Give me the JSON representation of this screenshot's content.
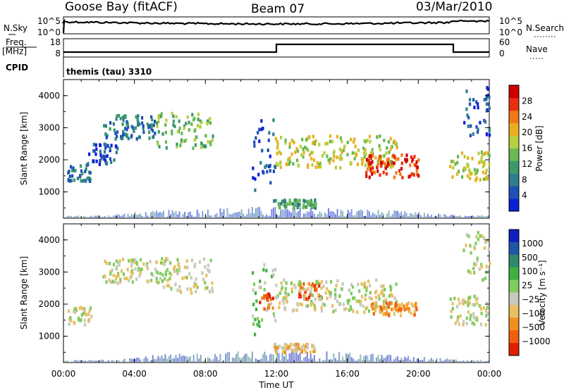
{
  "header": {
    "station": "Goose Bay (fitACF)",
    "beam": "Beam 07",
    "date": "03/Mar/2010"
  },
  "top_panels": {
    "noise_left_label": "N.Sky",
    "noise_right_label": "N.Search",
    "noise_ticks": [
      "10^5",
      "10^0"
    ],
    "freq_label": "Freq.",
    "freq_unit": "[MHz]",
    "freq_ticks": [
      "18",
      "8"
    ],
    "nave_label": "Nave",
    "nave_ticks": [
      "60",
      "0"
    ],
    "cpid_label": "CPID",
    "cpid_value": "themis (tau) 3310"
  },
  "colors": {
    "power_scale": [
      "#0a1fd6",
      "#1f50b8",
      "#2e7c8c",
      "#3a9a6a",
      "#69b850",
      "#b4d040",
      "#e8b020",
      "#f07818",
      "#e83010",
      "#d00000"
    ],
    "velocity_scale": [
      "#1020c0",
      "#2255a8",
      "#2e8a6a",
      "#40b040",
      "#80cc60",
      "#c8c8bc",
      "#e8c060",
      "#f09020",
      "#f06010",
      "#e02000"
    ]
  },
  "chart_data": [
    {
      "type": "heatmap",
      "ylabel": "Slant Range [km]",
      "ylim": [
        180,
        4500
      ],
      "y_ticks": [
        "1000",
        "2000",
        "3000",
        "4000"
      ],
      "colorbar_label": "Power [dB]",
      "colorbar_ticks": [
        "4",
        "8",
        "12",
        "16",
        "20",
        "24",
        "28"
      ],
      "bands": [
        {
          "t0": 0.2,
          "t1": 1.6,
          "r0": 1380,
          "r1": 1950,
          "level": 2
        },
        {
          "t0": 1.3,
          "t1": 3.0,
          "r0": 1900,
          "r1": 2550,
          "level": 1
        },
        {
          "t0": 2.2,
          "t1": 5.2,
          "r0": 2700,
          "r1": 3450,
          "level": 2
        },
        {
          "t0": 5.2,
          "t1": 8.4,
          "r0": 2400,
          "r1": 3500,
          "level": 4
        },
        {
          "t0": 10.6,
          "t1": 11.9,
          "r0": 1100,
          "r1": 3300,
          "level": 1
        },
        {
          "t0": 11.9,
          "t1": 18.8,
          "r0": 1800,
          "r1": 2800,
          "level": 5
        },
        {
          "t0": 17.0,
          "t1": 20.0,
          "r0": 1500,
          "r1": 2200,
          "level": 8
        },
        {
          "t0": 11.8,
          "t1": 14.2,
          "r0": 550,
          "r1": 800,
          "level": 3
        },
        {
          "t0": 21.7,
          "t1": 24.0,
          "r0": 1400,
          "r1": 2300,
          "level": 5
        },
        {
          "t0": 22.5,
          "t1": 24.0,
          "r0": 2800,
          "r1": 4300,
          "level": 1
        }
      ]
    },
    {
      "type": "heatmap",
      "ylabel": "Slant Range [km]",
      "xlabel": "Time UT",
      "ylim": [
        180,
        4500
      ],
      "y_ticks": [
        "1000",
        "2000",
        "3000",
        "4000"
      ],
      "x_ticks": [
        "00:00",
        "04:00",
        "08:00",
        "12:00",
        "16:00",
        "20:00",
        "00:00"
      ],
      "colorbar_label": "Velocity [m s⁻¹]",
      "colorbar_ticks": [
        "1000",
        "500",
        "100",
        "25",
        "−25",
        "−100",
        "−500",
        "−1000"
      ],
      "bands": [
        {
          "t0": 0.2,
          "t1": 1.6,
          "r0": 1380,
          "r1": 1950,
          "level": 5
        },
        {
          "t0": 2.2,
          "t1": 5.2,
          "r0": 2700,
          "r1": 3450,
          "level": 5
        },
        {
          "t0": 5.2,
          "t1": 8.4,
          "r0": 2400,
          "r1": 3500,
          "level": 5
        },
        {
          "t0": 10.6,
          "t1": 11.9,
          "r0": 1100,
          "r1": 3300,
          "level": 4
        },
        {
          "t0": 11.0,
          "t1": 11.8,
          "r0": 1900,
          "r1": 2400,
          "level": 8
        },
        {
          "t0": 13.2,
          "t1": 14.6,
          "r0": 2200,
          "r1": 2700,
          "level": 8
        },
        {
          "t0": 11.9,
          "t1": 18.8,
          "r0": 1800,
          "r1": 2800,
          "level": 5
        },
        {
          "t0": 17.2,
          "t1": 19.9,
          "r0": 1700,
          "r1": 2100,
          "level": 7
        },
        {
          "t0": 11.8,
          "t1": 14.2,
          "r0": 550,
          "r1": 800,
          "level": 6
        },
        {
          "t0": 21.7,
          "t1": 24.0,
          "r0": 1400,
          "r1": 2300,
          "level": 5
        },
        {
          "t0": 22.5,
          "t1": 24.0,
          "r0": 2800,
          "r1": 4300,
          "level": 5
        }
      ]
    }
  ]
}
